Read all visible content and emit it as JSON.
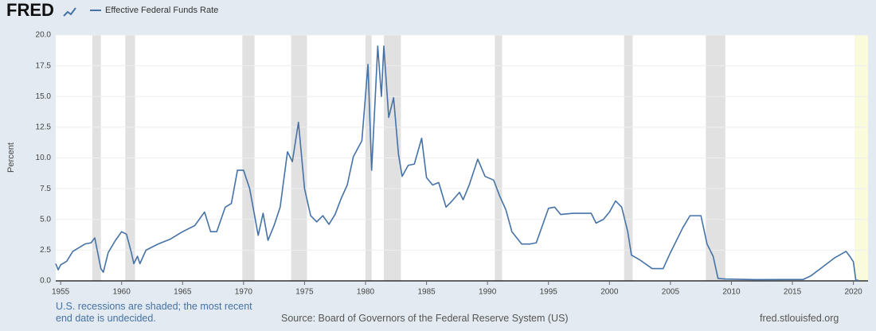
{
  "chart_data": {
    "type": "line",
    "logo": "FRED",
    "y_label": "Percent",
    "note": "U.S. recessions are shaded; the most recent end date is undecided.",
    "source": "Source: Board of Governors of the Federal Reserve System (US)",
    "site": "fred.stlouisfed.org",
    "x": [
      1954.6,
      1954.8,
      1955,
      1955.5,
      1956,
      1956.5,
      1957,
      1957.5,
      1957.8,
      1958.0,
      1958.3,
      1958.5,
      1958.9,
      1959.5,
      1960.0,
      1960.4,
      1960.8,
      1961.0,
      1961.3,
      1961.5,
      1962,
      1963,
      1964,
      1965,
      1966,
      1966.8,
      1967.3,
      1967.8,
      1968.5,
      1969,
      1969.5,
      1970,
      1970.5,
      1971.2,
      1971.6,
      1972,
      1972.5,
      1973,
      1973.6,
      1974,
      1974.5,
      1975,
      1975.5,
      1976,
      1976.5,
      1977,
      1977.5,
      1978,
      1978.5,
      1979,
      1979.7,
      1980.2,
      1980.5,
      1980.8,
      1981.0,
      1981.3,
      1981.5,
      1981.9,
      1982.3,
      1982.7,
      1983,
      1983.5,
      1984,
      1984.6,
      1985,
      1985.5,
      1986,
      1986.6,
      1987,
      1987.7,
      1988,
      1988.5,
      1989.2,
      1989.8,
      1990.5,
      1991,
      1991.5,
      1992,
      1992.8,
      1993.5,
      1994,
      1994.5,
      1995,
      1995.5,
      1996,
      1997,
      1998.5,
      1998.9,
      1999.5,
      2000,
      2000.5,
      2001,
      2001.5,
      2001.8,
      2002.5,
      2003.5,
      2004.4,
      2005,
      2006,
      2006.6,
      2007.5,
      2008,
      2008.5,
      2008.9,
      2009.5,
      2012,
      2015.9,
      2016.5,
      2017.5,
      2018.5,
      2019.4,
      2019.7,
      2020.0,
      2020.2,
      2020.4
    ],
    "series": [
      {
        "name": "Effective Federal Funds Rate",
        "color": "#4572a7",
        "values": [
          1.4,
          0.9,
          1.3,
          1.6,
          2.4,
          2.7,
          3.0,
          3.1,
          3.5,
          2.5,
          1.0,
          0.7,
          2.3,
          3.3,
          4.0,
          3.8,
          2.3,
          1.4,
          2.0,
          1.4,
          2.5,
          3.0,
          3.4,
          4.0,
          4.5,
          5.6,
          4.0,
          4.0,
          6.0,
          6.3,
          9.0,
          9.0,
          7.5,
          3.7,
          5.5,
          3.3,
          4.5,
          6.0,
          10.5,
          9.7,
          12.9,
          7.5,
          5.3,
          4.8,
          5.3,
          4.6,
          5.4,
          6.7,
          7.8,
          10.1,
          11.4,
          17.6,
          9.0,
          15.0,
          19.1,
          15.0,
          19.1,
          13.3,
          14.9,
          10.3,
          8.5,
          9.4,
          9.5,
          11.6,
          8.4,
          7.8,
          8.0,
          6.0,
          6.4,
          7.2,
          6.6,
          7.8,
          9.9,
          8.5,
          8.2,
          6.9,
          5.8,
          4.0,
          3.0,
          3.0,
          3.1,
          4.5,
          5.9,
          6.0,
          5.4,
          5.5,
          5.5,
          4.7,
          5.0,
          5.6,
          6.5,
          6.0,
          4.0,
          2.1,
          1.7,
          1.0,
          1.0,
          2.3,
          4.3,
          5.3,
          5.3,
          3.0,
          2.0,
          0.2,
          0.15,
          0.1,
          0.12,
          0.4,
          1.15,
          1.9,
          2.4,
          2.0,
          1.55,
          0.05,
          0.05
        ]
      }
    ],
    "recessions": [
      [
        1957.6,
        1958.3
      ],
      [
        1960.3,
        1961.1
      ],
      [
        1969.9,
        1970.9
      ],
      [
        1973.9,
        1975.2
      ],
      [
        1980.0,
        1980.5
      ],
      [
        1981.5,
        1982.9
      ],
      [
        1990.6,
        1991.2
      ],
      [
        2001.2,
        2001.9
      ],
      [
        2007.9,
        2009.5
      ]
    ],
    "pending_recession_start": 2020.1,
    "recession_color": "#e1e1e1",
    "pending_color": "#fafbdc",
    "xlim": [
      1954.6,
      2021.2
    ],
    "xticks": [
      1955,
      1960,
      1965,
      1970,
      1975,
      1980,
      1985,
      1990,
      1995,
      2000,
      2005,
      2010,
      2015,
      2020
    ],
    "ylim": [
      0,
      20
    ],
    "yticks": [
      {
        "value": 0,
        "label": "0.0"
      },
      2.5,
      {
        "value": 5,
        "label": "5.0"
      },
      7.5,
      {
        "value": 10,
        "label": "10.0"
      },
      12.5,
      {
        "value": 15,
        "label": "15.0"
      },
      17.5,
      {
        "value": 20,
        "label": "20.0"
      }
    ],
    "grid": true
  }
}
